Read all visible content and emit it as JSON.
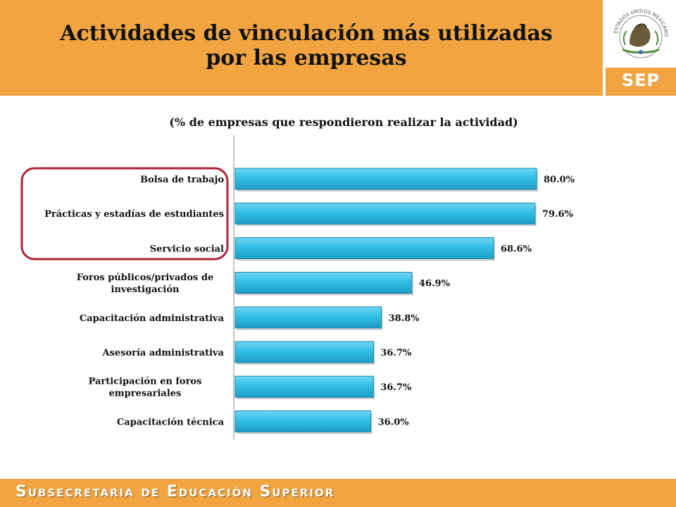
{
  "header": {
    "title_line1": "Actividades de vinculación más utilizadas",
    "title_line2": "por las empresas",
    "logo_text": "SEP",
    "seal_text": "ESTADOS UNIDOS MEXICANOS"
  },
  "colors": {
    "header_bg": "#F2A441",
    "bar_fill": "#33BFE6",
    "highlight_border": "#B22234"
  },
  "chart_data": {
    "type": "bar",
    "orientation": "horizontal",
    "title": "(% de empresas que respondieron realizar la actividad)",
    "categories": [
      [
        "Bolsa de trabajo"
      ],
      [
        "Prácticas y estadías de estudiantes"
      ],
      [
        "Servicio social"
      ],
      [
        "Foros públicos/privados de",
        "investigación"
      ],
      [
        "Capacitación administrativa"
      ],
      [
        "Asesoría administrativa"
      ],
      [
        "Participación en foros",
        "empresariales"
      ],
      [
        "Capacitación técnica"
      ]
    ],
    "values": [
      80.0,
      79.6,
      68.6,
      46.9,
      38.8,
      36.7,
      36.7,
      36.0
    ],
    "value_labels": [
      "80.0%",
      "79.6%",
      "68.6%",
      "46.9%",
      "38.8%",
      "36.7%",
      "36.7%",
      "36.0%"
    ],
    "xlim": [
      0,
      100
    ],
    "highlighted_categories": [
      0,
      1,
      2
    ],
    "grid": false,
    "legend": "none"
  },
  "footer": {
    "text": "Subsecretaria de Educación Superior"
  }
}
